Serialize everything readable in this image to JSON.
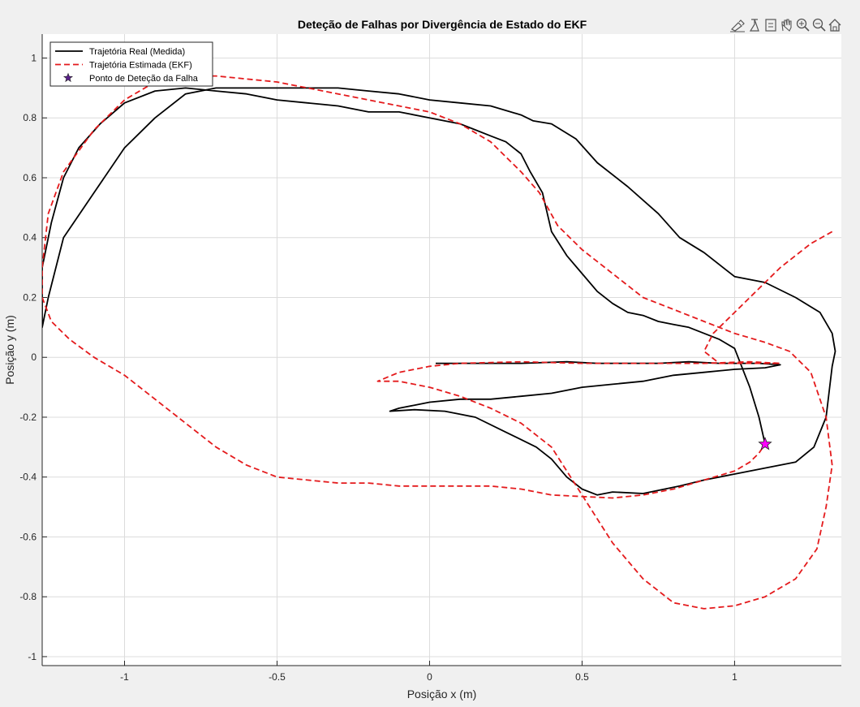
{
  "toolbar": {
    "icons": [
      "brush-icon",
      "datatip-icon",
      "export-icon",
      "pan-hand-icon",
      "zoom-in-icon",
      "zoom-out-icon",
      "home-icon"
    ]
  },
  "chart_data": {
    "type": "line",
    "title": "Deteção de Falhas por Divergência de Estado do EKF",
    "xlabel": "Posição x (m)",
    "ylabel": "Posição y (m)",
    "xlim": [
      -1.27,
      1.35
    ],
    "ylim": [
      -1.03,
      1.08
    ],
    "xticks": [
      -1,
      -0.5,
      0,
      0.5,
      1
    ],
    "yticks": [
      -1,
      -0.8,
      -0.6,
      -0.4,
      -0.2,
      0,
      0.2,
      0.4,
      0.6,
      0.8,
      1
    ],
    "xtick_labels": [
      "-1",
      "-0.5",
      "0",
      "0.5",
      "1"
    ],
    "ytick_labels": [
      "-1",
      "-0.8",
      "-0.6",
      "-0.4",
      "-0.2",
      "0",
      "0.2",
      "0.4",
      "0.6",
      "0.8",
      "1"
    ],
    "grid": true,
    "legend_position": "top-left",
    "series": [
      {
        "name": "Trajetória Real (Medida)",
        "color": "#000000",
        "style": "solid",
        "x": [
          0.02,
          0.15,
          0.3,
          0.45,
          0.55,
          0.65,
          0.75,
          0.85,
          0.95,
          1.02,
          1.08,
          1.15,
          1.1,
          1.0,
          0.9,
          0.8,
          0.7,
          0.6,
          0.5,
          0.4,
          0.3,
          0.2,
          0.1,
          0.0,
          -0.05,
          -0.1,
          -0.13,
          -0.05,
          0.05,
          0.15,
          0.25,
          0.35,
          0.4,
          0.45,
          0.5,
          0.55,
          0.6,
          0.7,
          0.82,
          0.9,
          1.0,
          1.1,
          1.2,
          1.26,
          1.3,
          1.32,
          1.33,
          1.32,
          1.28,
          1.2,
          1.1,
          1.0,
          0.9,
          0.82,
          0.75,
          0.65,
          0.55,
          0.48,
          0.4,
          0.34,
          0.3,
          0.2,
          0.1,
          0.0,
          -0.1,
          -0.2,
          -0.3,
          -0.4,
          -0.5,
          -0.6,
          -0.7,
          -0.8,
          -0.9,
          -1.0,
          -1.1,
          -1.2,
          -1.25,
          -1.27,
          -1.27,
          -1.24,
          -1.2,
          -1.15,
          -1.08,
          -1.0,
          -0.9,
          -0.8,
          -0.7,
          -0.6,
          -0.5,
          -0.4,
          -0.3,
          -0.2,
          -0.1,
          0.0,
          0.1,
          0.15,
          0.2,
          0.25,
          0.3,
          0.33,
          0.37,
          0.4,
          0.45,
          0.5,
          0.55,
          0.6,
          0.65,
          0.7,
          0.75,
          0.8,
          0.85,
          0.9,
          0.95,
          1.0,
          1.05,
          1.08,
          1.1
        ],
        "y": [
          -0.02,
          -0.02,
          -0.02,
          -0.015,
          -0.02,
          -0.02,
          -0.02,
          -0.015,
          -0.02,
          -0.02,
          -0.02,
          -0.025,
          -0.035,
          -0.04,
          -0.05,
          -0.06,
          -0.08,
          -0.09,
          -0.1,
          -0.12,
          -0.13,
          -0.14,
          -0.14,
          -0.15,
          -0.16,
          -0.17,
          -0.18,
          -0.175,
          -0.18,
          -0.2,
          -0.25,
          -0.3,
          -0.34,
          -0.4,
          -0.44,
          -0.46,
          -0.45,
          -0.455,
          -0.43,
          -0.41,
          -0.39,
          -0.37,
          -0.35,
          -0.3,
          -0.2,
          -0.03,
          0.02,
          0.08,
          0.15,
          0.2,
          0.25,
          0.27,
          0.35,
          0.4,
          0.48,
          0.57,
          0.65,
          0.73,
          0.78,
          0.79,
          0.81,
          0.84,
          0.85,
          0.86,
          0.88,
          0.89,
          0.9,
          0.9,
          0.9,
          0.9,
          0.9,
          0.88,
          0.8,
          0.7,
          0.55,
          0.4,
          0.2,
          0.1,
          0.3,
          0.45,
          0.6,
          0.7,
          0.78,
          0.85,
          0.89,
          0.9,
          0.89,
          0.88,
          0.86,
          0.85,
          0.84,
          0.82,
          0.82,
          0.8,
          0.78,
          0.76,
          0.74,
          0.72,
          0.68,
          0.62,
          0.55,
          0.42,
          0.34,
          0.28,
          0.22,
          0.18,
          0.15,
          0.14,
          0.12,
          0.11,
          0.1,
          0.08,
          0.06,
          0.03,
          -0.1,
          -0.2,
          -0.29
        ]
      },
      {
        "name": "Trajetória Estimada (EKF)",
        "color": "#e41a1c",
        "style": "dashed",
        "x": [
          1.32,
          1.25,
          1.15,
          1.05,
          0.98,
          0.93,
          0.9,
          0.95,
          1.05,
          1.12,
          1.15,
          1.05,
          0.9,
          0.7,
          0.5,
          0.3,
          0.1,
          0.0,
          -0.1,
          -0.17,
          -0.1,
          0.0,
          0.1,
          0.2,
          0.3,
          0.35,
          0.4,
          0.45,
          0.5,
          0.6,
          0.7,
          0.8,
          0.9,
          1.0,
          1.1,
          1.2,
          1.27,
          1.3,
          1.32,
          1.3,
          1.25,
          1.18,
          1.1,
          1.0,
          0.9,
          0.8,
          0.7,
          0.6,
          0.5,
          0.42,
          0.36,
          0.3,
          0.2,
          0.1,
          0.0,
          -0.1,
          -0.2,
          -0.3,
          -0.4,
          -0.5,
          -0.6,
          -0.7,
          -0.8,
          -0.9,
          -1.0,
          -1.1,
          -1.2,
          -1.25,
          -1.27,
          -1.27,
          -1.24,
          -1.18,
          -1.1,
          -1.0,
          -0.9,
          -0.8,
          -0.7,
          -0.6,
          -0.5,
          -0.4,
          -0.3,
          -0.2,
          -0.1,
          0.0,
          0.1,
          0.2,
          0.3,
          0.35,
          0.4,
          0.5,
          0.6,
          0.7,
          0.8,
          0.9,
          1.0,
          1.05,
          1.08,
          1.1
        ],
        "y": [
          0.42,
          0.38,
          0.3,
          0.2,
          0.13,
          0.08,
          0.02,
          -0.02,
          -0.02,
          -0.02,
          -0.02,
          -0.015,
          -0.02,
          -0.02,
          -0.02,
          -0.015,
          -0.02,
          -0.03,
          -0.05,
          -0.08,
          -0.08,
          -0.1,
          -0.13,
          -0.17,
          -0.22,
          -0.26,
          -0.3,
          -0.38,
          -0.46,
          -0.62,
          -0.74,
          -0.82,
          -0.84,
          -0.83,
          -0.8,
          -0.74,
          -0.64,
          -0.5,
          -0.36,
          -0.2,
          -0.05,
          0.02,
          0.05,
          0.08,
          0.12,
          0.16,
          0.2,
          0.28,
          0.36,
          0.44,
          0.55,
          0.62,
          0.72,
          0.78,
          0.82,
          0.84,
          0.86,
          0.88,
          0.9,
          0.92,
          0.93,
          0.94,
          0.94,
          0.92,
          0.86,
          0.76,
          0.62,
          0.48,
          0.3,
          0.2,
          0.12,
          0.06,
          0.0,
          -0.06,
          -0.14,
          -0.22,
          -0.3,
          -0.36,
          -0.4,
          -0.41,
          -0.42,
          -0.42,
          -0.43,
          -0.43,
          -0.43,
          -0.43,
          -0.44,
          -0.45,
          -0.46,
          -0.465,
          -0.47,
          -0.46,
          -0.44,
          -0.41,
          -0.38,
          -0.35,
          -0.32,
          -0.29
        ]
      },
      {
        "name": "Ponto de Deteção da Falha",
        "color": "#ff00ff",
        "style": "marker-star",
        "x": [
          1.1
        ],
        "y": [
          -0.29
        ]
      }
    ]
  }
}
